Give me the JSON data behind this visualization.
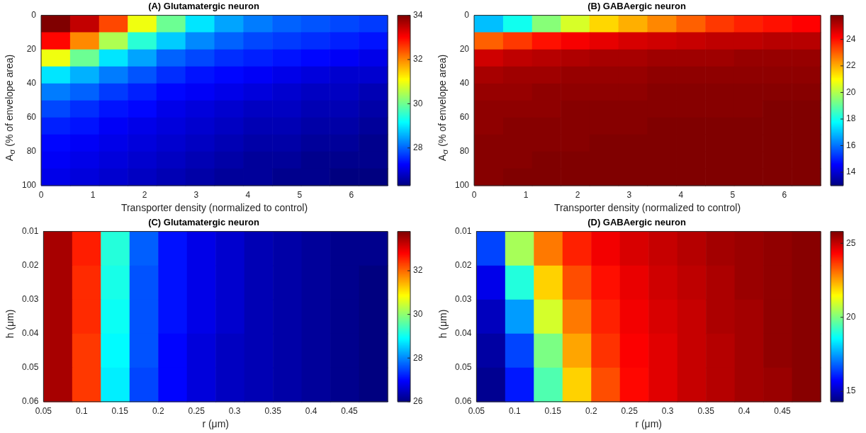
{
  "chart_data": [
    {
      "type": "heatmap",
      "title": "(A) Glutamatergic neuron",
      "xlabel": "Transporter density (normalized to control)",
      "ylabel": "A$_{σ}$ (% of envelope area)",
      "xlim": [
        0,
        6.7
      ],
      "xticks": [
        0,
        1,
        2,
        3,
        4,
        5,
        6
      ],
      "ylim": [
        100,
        0
      ],
      "yticks": [
        0,
        20,
        40,
        60,
        80,
        100
      ],
      "clim": [
        26.3,
        34
      ],
      "cticks": [
        28,
        30,
        32,
        34
      ],
      "x": [
        0.28,
        0.84,
        1.4,
        1.95,
        2.51,
        3.07,
        3.63,
        4.19,
        4.75,
        5.3,
        5.86,
        6.42
      ],
      "y": [
        5,
        15,
        25,
        35,
        45,
        55,
        65,
        75,
        85,
        95
      ],
      "cells": [
        [
          34,
          33.5,
          32.5,
          31,
          30,
          29,
          28.5,
          28.2,
          28,
          27.9,
          27.8,
          27.7
        ],
        [
          33,
          32,
          30.5,
          29.5,
          28.8,
          28.3,
          28,
          27.8,
          27.7,
          27.6,
          27.5,
          27.4
        ],
        [
          31,
          30,
          29,
          28.5,
          28,
          27.8,
          27.6,
          27.5,
          27.4,
          27.3,
          27.2,
          27.1
        ],
        [
          29,
          28.6,
          28.2,
          27.9,
          27.6,
          27.4,
          27.3,
          27.2,
          27.1,
          27,
          26.9,
          26.9
        ],
        [
          28.2,
          28,
          27.7,
          27.5,
          27.3,
          27.2,
          27.1,
          27,
          26.9,
          26.8,
          26.8,
          26.7
        ],
        [
          27.8,
          27.6,
          27.4,
          27.3,
          27.1,
          27,
          26.9,
          26.8,
          26.8,
          26.7,
          26.7,
          26.6
        ],
        [
          27.5,
          27.4,
          27.2,
          27.1,
          27,
          26.9,
          26.8,
          26.7,
          26.7,
          26.6,
          26.6,
          26.5
        ],
        [
          27.3,
          27.2,
          27.1,
          27,
          26.9,
          26.8,
          26.7,
          26.6,
          26.6,
          26.5,
          26.5,
          26.4
        ],
        [
          27.2,
          27.1,
          27,
          26.9,
          26.8,
          26.7,
          26.6,
          26.5,
          26.5,
          26.4,
          26.4,
          26.4
        ],
        [
          27.1,
          27,
          26.9,
          26.8,
          26.7,
          26.6,
          26.5,
          26.5,
          26.4,
          26.4,
          26.3,
          26.3
        ]
      ]
    },
    {
      "type": "heatmap",
      "title": "(B) GABAergic neuron",
      "xlabel": "Transporter density (normalized to control)",
      "ylabel": "A$_{σ}$ (% of envelope area)",
      "xlim": [
        0,
        6.7
      ],
      "xticks": [
        0,
        1,
        2,
        3,
        4,
        5,
        6
      ],
      "ylim": [
        100,
        0
      ],
      "yticks": [
        0,
        20,
        40,
        60,
        80,
        100
      ],
      "clim": [
        13,
        25.8
      ],
      "cticks": [
        14,
        16,
        18,
        20,
        22,
        24
      ],
      "x": [
        0.28,
        0.84,
        1.4,
        1.95,
        2.51,
        3.07,
        3.63,
        4.19,
        4.75,
        5.3,
        5.86,
        6.42
      ],
      "y": [
        5,
        15,
        25,
        35,
        45,
        55,
        65,
        75,
        85,
        95
      ],
      "cells": [
        [
          17,
          18,
          19.5,
          20.5,
          21.5,
          22,
          22.5,
          23,
          23.5,
          23.8,
          24,
          24.2
        ],
        [
          23,
          23.5,
          24,
          24.3,
          24.5,
          24.7,
          24.8,
          24.9,
          25,
          25,
          25.1,
          25.1
        ],
        [
          24.8,
          25,
          25.1,
          25.2,
          25.3,
          25.3,
          25.4,
          25.4,
          25.4,
          25.5,
          25.5,
          25.5
        ],
        [
          25.3,
          25.4,
          25.4,
          25.5,
          25.5,
          25.5,
          25.6,
          25.6,
          25.6,
          25.6,
          25.6,
          25.6
        ],
        [
          25.5,
          25.5,
          25.6,
          25.6,
          25.6,
          25.6,
          25.7,
          25.7,
          25.7,
          25.7,
          25.7,
          25.7
        ],
        [
          25.6,
          25.6,
          25.6,
          25.7,
          25.7,
          25.7,
          25.7,
          25.7,
          25.7,
          25.7,
          25.8,
          25.8
        ],
        [
          25.6,
          25.7,
          25.7,
          25.7,
          25.7,
          25.7,
          25.8,
          25.8,
          25.8,
          25.8,
          25.8,
          25.8
        ],
        [
          25.7,
          25.7,
          25.7,
          25.7,
          25.8,
          25.8,
          25.8,
          25.8,
          25.8,
          25.8,
          25.8,
          25.8
        ],
        [
          25.7,
          25.7,
          25.8,
          25.8,
          25.8,
          25.8,
          25.8,
          25.8,
          25.8,
          25.8,
          25.8,
          25.8
        ],
        [
          25.7,
          25.8,
          25.8,
          25.8,
          25.8,
          25.8,
          25.8,
          25.8,
          25.8,
          25.8,
          25.8,
          25.8
        ]
      ]
    },
    {
      "type": "heatmap",
      "title": "(C) Glutamatergic neuron",
      "xlabel": "r (μm)",
      "ylabel": "h (μm)",
      "xlim": [
        0.05,
        0.5
      ],
      "xticks": [
        0.05,
        0.1,
        0.15,
        0.2,
        0.25,
        0.3,
        0.35,
        0.4,
        0.45
      ],
      "ylim": [
        0.06,
        0.01
      ],
      "yticks": [
        0.01,
        0.02,
        0.03,
        0.04,
        0.05,
        0.06
      ],
      "clim": [
        26,
        33.8
      ],
      "cticks": [
        26,
        28,
        30,
        32
      ],
      "x": [
        0.069,
        0.106,
        0.144,
        0.181,
        0.219,
        0.256,
        0.294,
        0.331,
        0.369,
        0.406,
        0.444,
        0.481
      ],
      "y": [
        0.015,
        0.025,
        0.035,
        0.045,
        0.055
      ],
      "cells": [
        [
          33.5,
          32.6,
          29.2,
          27.7,
          27.1,
          26.8,
          26.6,
          26.4,
          26.3,
          26.2,
          26.1,
          26.1
        ],
        [
          33.5,
          32.5,
          29.1,
          27.6,
          27.1,
          26.8,
          26.6,
          26.4,
          26.3,
          26.2,
          26.1,
          26
        ],
        [
          33.5,
          32.5,
          29,
          27.6,
          27.1,
          26.8,
          26.6,
          26.4,
          26.3,
          26.2,
          26.1,
          26
        ],
        [
          33.5,
          32.4,
          28.9,
          27.6,
          27,
          26.7,
          26.5,
          26.4,
          26.3,
          26.2,
          26.1,
          26
        ],
        [
          33.5,
          32.4,
          28.8,
          27.5,
          27,
          26.7,
          26.5,
          26.4,
          26.3,
          26.2,
          26.1,
          26
        ]
      ]
    },
    {
      "type": "heatmap",
      "title": "(D) GABAergic neuron",
      "xlabel": "r (μm)",
      "ylabel": "h (μm)",
      "xlim": [
        0.05,
        0.5
      ],
      "xticks": [
        0.05,
        0.1,
        0.15,
        0.2,
        0.25,
        0.3,
        0.35,
        0.4,
        0.45
      ],
      "ylim": [
        0.06,
        0.01
      ],
      "yticks": [
        0.01,
        0.02,
        0.03,
        0.04,
        0.05,
        0.06
      ],
      "clim": [
        14.3,
        25.8
      ],
      "cticks": [
        15,
        20,
        25
      ],
      "x": [
        0.069,
        0.106,
        0.144,
        0.181,
        0.219,
        0.256,
        0.294,
        0.331,
        0.369,
        0.406,
        0.444,
        0.481
      ],
      "y": [
        0.015,
        0.025,
        0.035,
        0.045,
        0.055
      ],
      "cells": [
        [
          16.5,
          20.5,
          23,
          24,
          24.5,
          24.8,
          25,
          25.2,
          25.4,
          25.5,
          25.6,
          25.7
        ],
        [
          15.5,
          19,
          22,
          23.5,
          24.2,
          24.6,
          24.9,
          25.1,
          25.3,
          25.5,
          25.6,
          25.7
        ],
        [
          15,
          17.5,
          21,
          23,
          24,
          24.5,
          24.8,
          25,
          25.3,
          25.4,
          25.6,
          25.7
        ],
        [
          14.7,
          16.5,
          20,
          22.5,
          23.8,
          24.4,
          24.7,
          25,
          25.2,
          25.4,
          25.6,
          25.7
        ],
        [
          14.5,
          16,
          19.5,
          22,
          23.5,
          24.3,
          24.7,
          25,
          25.2,
          25.4,
          25.5,
          25.7
        ]
      ]
    }
  ]
}
